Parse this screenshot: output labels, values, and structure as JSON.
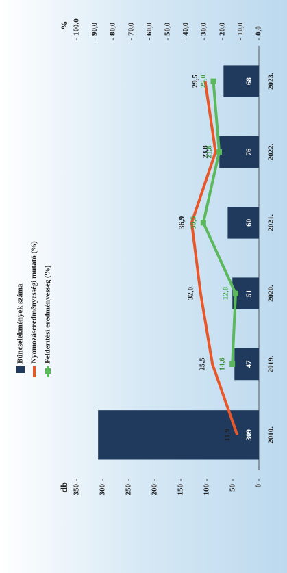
{
  "chart_data": {
    "type": "bar",
    "legend": "left-top",
    "y_label": "db",
    "y2_label": "%",
    "categories": [
      "2010.",
      "2019.",
      "2020.",
      "2021.",
      "2022.",
      "2023."
    ],
    "ylim": [
      0,
      350
    ],
    "yticks": [
      0,
      50,
      100,
      150,
      200,
      250,
      300,
      350
    ],
    "y2lim": [
      0,
      100
    ],
    "y2ticks": [
      {
        "value": 0,
        "label": "0,0"
      },
      {
        "value": 10,
        "label": "10,0"
      },
      {
        "value": 20,
        "label": "20,0"
      },
      {
        "value": 30,
        "label": "30,0"
      },
      {
        "value": 40,
        "label": "40,0"
      },
      {
        "value": 50,
        "label": "50,0"
      },
      {
        "value": 60,
        "label": "60,0"
      },
      {
        "value": 70,
        "label": "70,0"
      },
      {
        "value": 80,
        "label": "80,0"
      },
      {
        "value": 90,
        "label": "90,0"
      },
      {
        "value": 100,
        "label": "100,0"
      }
    ],
    "series": [
      {
        "name": "Bűncselekmények száma",
        "type": "bar",
        "color": "#1f3a5c",
        "values": [
          309,
          47,
          51,
          60,
          76,
          68
        ]
      },
      {
        "name": "Nyomozáseredményességi mutató (%)",
        "type": "line",
        "axis": "y2",
        "color": "#e8572a",
        "values": [
          11.9,
          25.5,
          32.0,
          36.9,
          23.8,
          29.5
        ],
        "value_labels": [
          "11,9",
          "25,5",
          "32,0",
          "36,9",
          "23,8",
          "29,5"
        ]
      },
      {
        "name": "Felderítési eredményesség (%)",
        "type": "line",
        "axis": "y2",
        "color": "#5cb85c",
        "values": [
          null,
          14.6,
          12.8,
          30.5,
          21.8,
          25.0
        ],
        "value_labels": [
          null,
          "14,6",
          "12,8",
          "30,5",
          "21,8",
          "25,0"
        ]
      }
    ]
  }
}
